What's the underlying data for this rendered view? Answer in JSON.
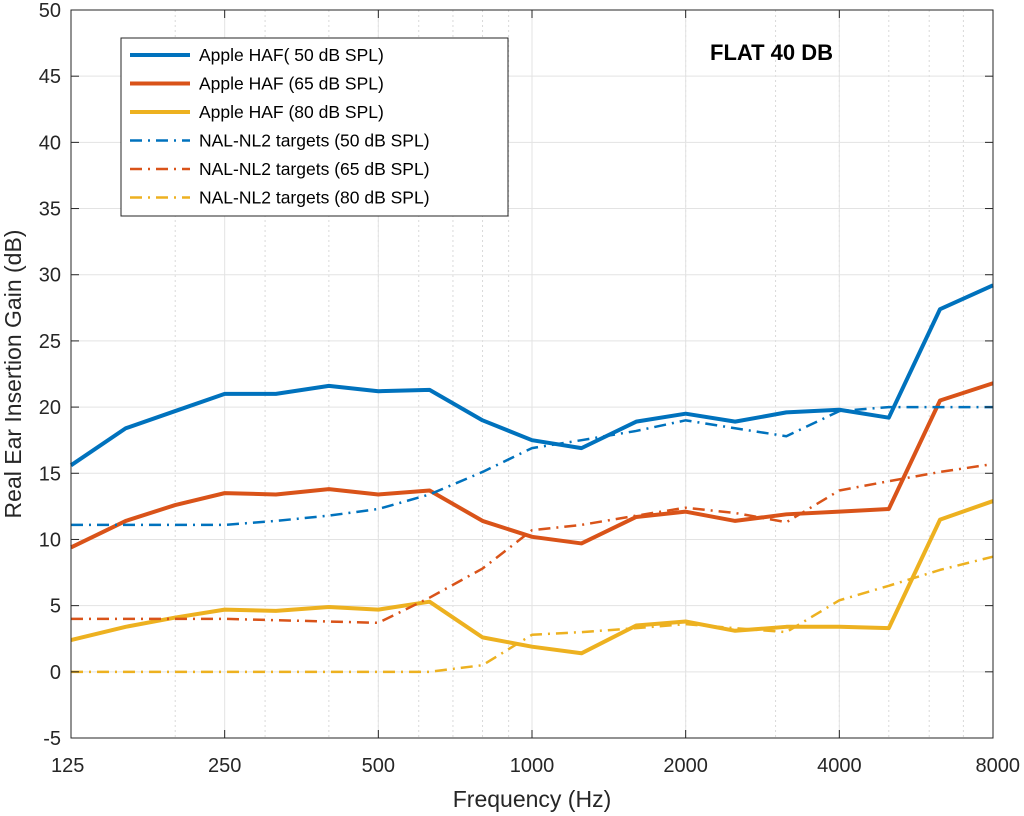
{
  "chart_data": {
    "type": "line",
    "title": "",
    "annotation": "FLAT 40 DB",
    "xlabel": "Frequency (Hz)",
    "ylabel": "Real Ear Insertion Gain (dB)",
    "xscale": "log",
    "xlim": [
      125,
      8000
    ],
    "ylim": [
      -5,
      50
    ],
    "xticks": [
      125,
      250,
      500,
      1000,
      2000,
      4000,
      8000
    ],
    "xtick_labels": [
      "125",
      "250",
      "500",
      "1000",
      "2000",
      "4000",
      "8000"
    ],
    "yticks": [
      -5,
      0,
      5,
      10,
      15,
      20,
      25,
      30,
      35,
      40,
      45,
      50
    ],
    "ytick_labels": [
      "-5",
      "0",
      "5",
      "10",
      "15",
      "20",
      "25",
      "30",
      "35",
      "40",
      "45",
      "50"
    ],
    "grid": true,
    "legend_position": "top-left",
    "series": [
      {
        "name": "Apple HAF( 50 dB SPL)",
        "color": "#0072BD",
        "style": "solid",
        "x": [
          125,
          160,
          200,
          250,
          315,
          400,
          500,
          630,
          800,
          1000,
          1250,
          1600,
          2000,
          2500,
          3150,
          4000,
          5000,
          6300,
          8000
        ],
        "y": [
          15.6,
          18.4,
          19.7,
          21.0,
          21.0,
          21.6,
          21.2,
          21.3,
          19.0,
          17.5,
          16.9,
          18.9,
          19.5,
          18.9,
          19.6,
          19.8,
          19.2,
          27.4,
          29.2
        ]
      },
      {
        "name": "Apple HAF (65 dB SPL)",
        "color": "#D95319",
        "style": "solid",
        "x": [
          125,
          160,
          200,
          250,
          315,
          400,
          500,
          630,
          800,
          1000,
          1250,
          1600,
          2000,
          2500,
          3150,
          4000,
          5000,
          6300,
          8000
        ],
        "y": [
          9.4,
          11.4,
          12.6,
          13.5,
          13.4,
          13.8,
          13.4,
          13.7,
          11.4,
          10.2,
          9.7,
          11.7,
          12.1,
          11.4,
          11.9,
          12.1,
          12.3,
          20.5,
          21.8
        ]
      },
      {
        "name": "Apple HAF (80 dB SPL)",
        "color": "#EDB120",
        "style": "solid",
        "x": [
          125,
          160,
          200,
          250,
          315,
          400,
          500,
          630,
          800,
          1000,
          1250,
          1600,
          2000,
          2500,
          3150,
          4000,
          5000,
          6300,
          8000
        ],
        "y": [
          2.4,
          3.4,
          4.1,
          4.7,
          4.6,
          4.9,
          4.7,
          5.3,
          2.6,
          1.9,
          1.4,
          3.5,
          3.8,
          3.1,
          3.4,
          3.4,
          3.3,
          11.5,
          12.9
        ]
      },
      {
        "name": "NAL-NL2 targets (50 dB SPL)",
        "color": "#0072BD",
        "style": "dashdot",
        "x": [
          125,
          160,
          200,
          250,
          315,
          400,
          500,
          630,
          800,
          1000,
          1250,
          1600,
          2000,
          2500,
          3150,
          4000,
          5000,
          6300,
          8000
        ],
        "y": [
          11.1,
          11.1,
          11.1,
          11.1,
          11.4,
          11.8,
          12.3,
          13.4,
          15.1,
          16.9,
          17.5,
          18.2,
          19.0,
          18.4,
          17.8,
          19.7,
          20.0,
          20.0,
          20.0
        ]
      },
      {
        "name": "NAL-NL2 targets (65 dB SPL)",
        "color": "#D95319",
        "style": "dashdot",
        "x": [
          125,
          160,
          200,
          250,
          315,
          400,
          500,
          630,
          800,
          1000,
          1250,
          1600,
          2000,
          2500,
          3150,
          4000,
          5000,
          6300,
          8000
        ],
        "y": [
          4.0,
          4.0,
          4.0,
          4.0,
          3.9,
          3.8,
          3.7,
          5.6,
          7.8,
          10.7,
          11.1,
          11.8,
          12.4,
          12.0,
          11.3,
          13.7,
          14.4,
          15.1,
          15.7
        ]
      },
      {
        "name": "NAL-NL2 targets (80 dB SPL)",
        "color": "#EDB120",
        "style": "dashdot",
        "x": [
          125,
          160,
          200,
          250,
          315,
          400,
          500,
          630,
          800,
          1000,
          1250,
          1600,
          2000,
          2500,
          3150,
          4000,
          5000,
          6300,
          8000
        ],
        "y": [
          0.0,
          0.0,
          0.0,
          0.0,
          0.0,
          0.0,
          0.0,
          0.0,
          0.5,
          2.8,
          3.0,
          3.3,
          3.6,
          3.3,
          3.0,
          5.4,
          6.5,
          7.7,
          8.7
        ]
      }
    ]
  }
}
